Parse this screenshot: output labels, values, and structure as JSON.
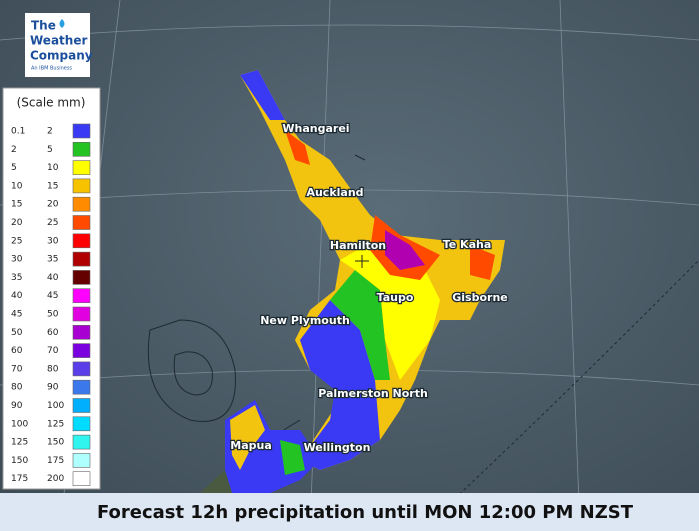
{
  "logo": {
    "line1": "The",
    "line2": "Weather",
    "line3": "Company",
    "tagline": "An IBM Business"
  },
  "legend": {
    "title": "(Scale mm)",
    "rows": [
      {
        "from": 0.1,
        "to": 2,
        "color": "#3a3af5"
      },
      {
        "from": 2,
        "to": 5,
        "color": "#22c322"
      },
      {
        "from": 5,
        "to": 10,
        "color": "#ffff00"
      },
      {
        "from": 10,
        "to": 15,
        "color": "#f7c200"
      },
      {
        "from": 15,
        "to": 20,
        "color": "#ff8c00"
      },
      {
        "from": 20,
        "to": 25,
        "color": "#ff4a00"
      },
      {
        "from": 25,
        "to": 30,
        "color": "#ff0000"
      },
      {
        "from": 30,
        "to": 35,
        "color": "#b00000"
      },
      {
        "from": 35,
        "to": 40,
        "color": "#650000"
      },
      {
        "from": 40,
        "to": 45,
        "color": "#ff00ff"
      },
      {
        "from": 45,
        "to": 50,
        "color": "#e000e0"
      },
      {
        "from": 50,
        "to": 60,
        "color": "#a800d0"
      },
      {
        "from": 60,
        "to": 70,
        "color": "#7a00e0"
      },
      {
        "from": 70,
        "to": 80,
        "color": "#5a3ee8"
      },
      {
        "from": 80,
        "to": 90,
        "color": "#3a78ec"
      },
      {
        "from": 90,
        "to": 100,
        "color": "#00b0ff"
      },
      {
        "from": 100,
        "to": 125,
        "color": "#00dcff"
      },
      {
        "from": 125,
        "to": 150,
        "color": "#30f5ee"
      },
      {
        "from": 150,
        "to": 175,
        "color": "#b0ffff"
      },
      {
        "from": 175,
        "to": 200,
        "color": "#ffffff"
      }
    ]
  },
  "cities": [
    "Whangarei",
    "Auckland",
    "Hamilton",
    "Te Kaha",
    "Taupo",
    "Gisborne",
    "New Plymouth",
    "Palmerston North",
    "Mapua",
    "Wellington"
  ],
  "caption": "Forecast 12h precipitation until MON 12:00 PM NZST"
}
